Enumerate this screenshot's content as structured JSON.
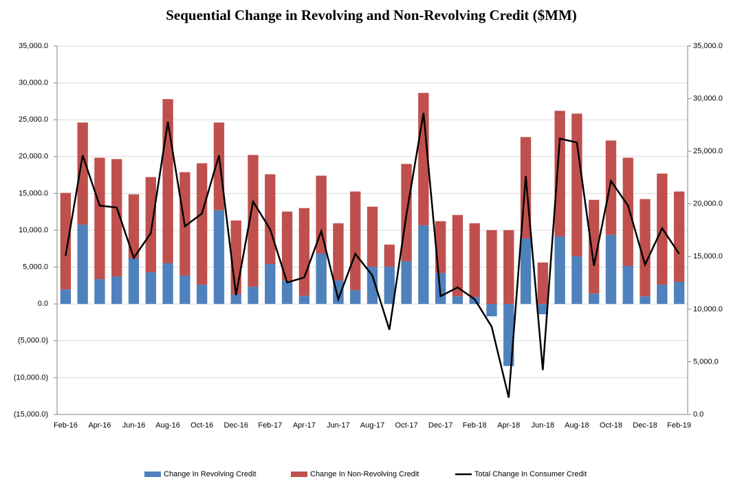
{
  "chart_data": {
    "type": "bar",
    "title": "Sequential Change in Revolving and Non-Revolving Credit ($MM)",
    "categories": [
      "Feb-16",
      null,
      "Apr-16",
      null,
      "Jun-16",
      null,
      "Aug-16",
      null,
      "Oct-16",
      null,
      "Dec-16",
      null,
      "Feb-17",
      null,
      "Apr-17",
      null,
      "Jun-17",
      null,
      "Aug-17",
      null,
      "Oct-17",
      null,
      "Dec-17",
      null,
      "Feb-18",
      null,
      "Apr-18",
      null,
      "Jun-18",
      null,
      "Aug-18",
      null,
      "Oct-18",
      null,
      "Dec-18",
      null,
      "Feb-19"
    ],
    "series": [
      {
        "name": "Change In Revolving Credit",
        "color": "#4f81bd",
        "stacked": true,
        "values": [
          1970,
          10760,
          3370,
          3740,
          6180,
          4300,
          5520,
          3840,
          2620,
          12730,
          1310,
          2340,
          5430,
          3180,
          1120,
          6830,
          3180,
          1870,
          5050,
          5050,
          5800,
          10670,
          4210,
          1030,
          940,
          -1680,
          -8420,
          8890,
          -1400,
          9170,
          6460,
          1400,
          9360,
          5150,
          1030,
          2620,
          3000
        ]
      },
      {
        "name": "Change In Non-Revolving Credit",
        "color": "#c0504d",
        "stacked": true,
        "values": [
          13100,
          13860,
          16470,
          15920,
          8700,
          12920,
          22280,
          14040,
          16470,
          11890,
          10020,
          17880,
          12170,
          9360,
          11890,
          10580,
          7770,
          13390,
          8150,
          3000,
          13200,
          17970,
          7020,
          11040,
          10010,
          10020,
          10020,
          13760,
          5620,
          17040,
          19370,
          12730,
          12820,
          14690,
          13200,
          15070,
          12260
        ]
      },
      {
        "name": "Total Change In Consumer Credit",
        "color": "#000000",
        "type": "line",
        "axis": "y2",
        "values": [
          15070,
          24620,
          19840,
          19660,
          14880,
          17220,
          27800,
          17880,
          19090,
          24620,
          11330,
          20220,
          17600,
          12540,
          13010,
          17410,
          10950,
          15260,
          13200,
          8050,
          19000,
          28640,
          11230,
          12070,
          10950,
          8340,
          1600,
          22650,
          4220,
          26210,
          25830,
          14130,
          22180,
          19840,
          14230,
          17690,
          15260
        ]
      }
    ],
    "ylim": [
      -15000,
      35000
    ],
    "yticks": [
      {
        "value": -15000,
        "label": "(15,000.0)"
      },
      {
        "value": -10000,
        "label": "(10,000.0)"
      },
      {
        "value": -5000,
        "label": "(5,000.0)"
      },
      {
        "value": 0,
        "label": "0.0"
      },
      {
        "value": 5000,
        "label": "5,000.0"
      },
      {
        "value": 10000,
        "label": "10,000.0"
      },
      {
        "value": 15000,
        "label": "15,000.0"
      },
      {
        "value": 20000,
        "label": "20,000.0"
      },
      {
        "value": 25000,
        "label": "25,000.0"
      },
      {
        "value": 30000,
        "label": "30,000.0"
      },
      {
        "value": 35000,
        "label": "35,000.0"
      }
    ],
    "y2lim": [
      0,
      35000
    ],
    "y2ticks": [
      {
        "value": 0,
        "label": "0.0"
      },
      {
        "value": 5000,
        "label": "5,000.0"
      },
      {
        "value": 10000,
        "label": "10,000.0"
      },
      {
        "value": 15000,
        "label": "15,000.0"
      },
      {
        "value": 20000,
        "label": "20,000.0"
      },
      {
        "value": 25000,
        "label": "25,000.0"
      },
      {
        "value": 30000,
        "label": "30,000.0"
      },
      {
        "value": 35000,
        "label": "35,000.0"
      }
    ],
    "negative_tick_color": "#c00000",
    "grid": true,
    "legend": "bottom"
  }
}
